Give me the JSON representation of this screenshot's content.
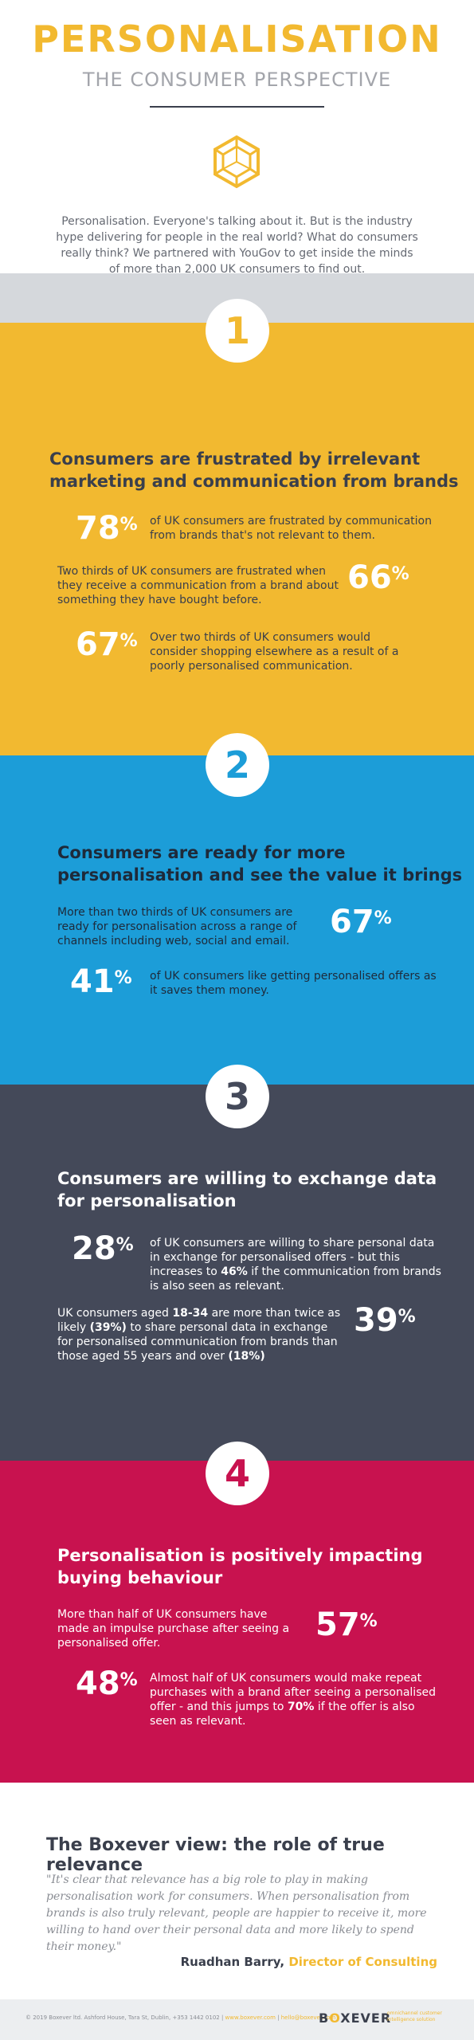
{
  "header": {
    "title": "PERSONALISATION",
    "subtitle": "THE CONSUMER PERSPECTIVE",
    "logo_icon": "hexagon-cube-icon",
    "intro": "Personalisation. Everyone's talking about it. But is the industry hype delivering for people in the real world? What do consumers really think? We partnered with YouGov to get inside the minds of more than 2,000 UK consumers to find out."
  },
  "colors": {
    "yellow": "#f2b930",
    "blue": "#1c9dd8",
    "slate": "#444959",
    "crimson": "#c8124f",
    "grey_band": "#d5d8dc"
  },
  "sections": [
    {
      "number": "1",
      "heading_line1": "Consumers are frustrated by irrelevant",
      "heading_line2": "marketing and communication from brands",
      "stats": [
        {
          "value": "78",
          "unit": "%",
          "text": "of UK consumers are frustrated by communication from brands that's not relevant to them."
        },
        {
          "value": "66",
          "unit": "%",
          "text": "Two thirds of UK consumers are frustrated when they receive a communication from a brand about something they have bought before."
        },
        {
          "value": "67",
          "unit": "%",
          "text": "Over two thirds of UK consumers would consider shopping elsewhere as a result of a poorly personalised communication."
        }
      ]
    },
    {
      "number": "2",
      "heading_line1": "Consumers are ready for more",
      "heading_line2": "personalisation and see the value it brings",
      "stats": [
        {
          "value": "67",
          "unit": "%",
          "text": "More than two thirds of UK consumers are ready for personalisation across a range of channels including web, social and email."
        },
        {
          "value": "41",
          "unit": "%",
          "text": "of UK consumers like getting personalised offers as it saves them money."
        }
      ]
    },
    {
      "number": "3",
      "heading_line1": "Consumers are willing to exchange data",
      "heading_line2": "for personalisation",
      "stats": [
        {
          "value": "28",
          "unit": "%",
          "text_a": "of UK consumers are willing to share personal data in exchange for personalised offers - but this increases to ",
          "text_b": "46%",
          "text_c": " if the communication from brands is also seen as relevant."
        },
        {
          "value": "39",
          "unit": "%",
          "text_a": "UK consumers aged ",
          "text_b": "18-34",
          "text_c": " are more than twice as likely ",
          "text_d": "(39%)",
          "text_e": " to share personal data in exchange for personalised communication from brands than those aged 55 years and over ",
          "text_f": "(18%)"
        }
      ]
    },
    {
      "number": "4",
      "heading_line1": "Personalisation is positively impacting",
      "heading_line2": "buying behaviour",
      "stats": [
        {
          "value": "57",
          "unit": "%",
          "text": "More than half of UK consumers have made an impulse purchase after seeing a personalised offer."
        },
        {
          "value": "48",
          "unit": "%",
          "text_a": "Almost half of UK consumers would make repeat purchases with a brand after seeing a personalised offer - and this jumps to ",
          "text_b": "70%",
          "text_c": " if the offer is also seen as relevant."
        }
      ]
    }
  ],
  "boxever_view": {
    "heading": "The Boxever view: the role of true relevance",
    "quote": "\"It's clear that relevance has a big role to play in making personalisation work for consumers. When personalisation from brands is also truly relevant, people are happier to receive it, more willing to hand over their personal data and more likely to spend their money.\"",
    "author_name": "Ruadhan Barry,",
    "author_role": "Director of Consulting"
  },
  "footer": {
    "copyright": "© 2019 Boxever ltd. Ashford House, Tara St, Dublin, +353 1442 0102 |",
    "link1": "www.boxever.com",
    "separator": "|",
    "link2": "hello@boxever.com",
    "logo_left": "B",
    "logo_o": "O",
    "logo_right": "XEVER",
    "tagline": "omnichannel customer intelligence solution"
  }
}
